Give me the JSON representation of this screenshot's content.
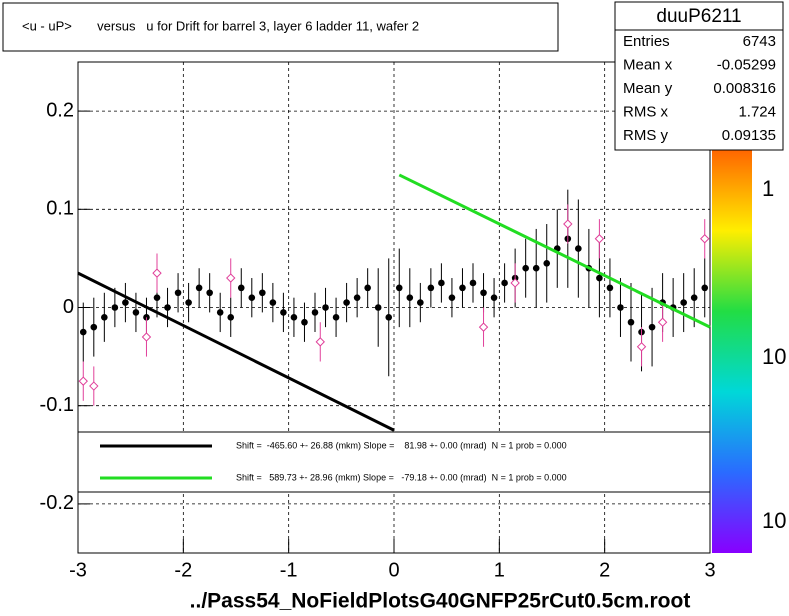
{
  "chart_data": {
    "type": "scatter",
    "title": "<u - uP>       versus   u for Drift for barrel 3, layer 6 ladder 11, wafer 2",
    "xlabel": "../Pass54_NoFieldPlotsG40GNFP25rCut0.5cm.root",
    "xlim": [
      -3,
      3
    ],
    "ylim": [
      -0.25,
      0.25
    ],
    "xticks": [
      -3,
      -2,
      -1,
      0,
      1,
      2,
      3
    ],
    "yticks": [
      0.2,
      0.1,
      0,
      -0.1,
      -0.2
    ],
    "grid": true,
    "series": [
      {
        "color": "#000000",
        "marker": "filled",
        "x": [
          -2.95,
          -2.85,
          -2.75,
          -2.65,
          -2.55,
          -2.45,
          -2.35,
          -2.25,
          -2.15,
          -2.05,
          -1.95,
          -1.85,
          -1.75,
          -1.65,
          -1.55,
          -1.45,
          -1.35,
          -1.25,
          -1.15,
          -1.05,
          -0.95,
          -0.85,
          -0.75,
          -0.65,
          -0.55,
          -0.45,
          -0.35,
          -0.25,
          -0.15,
          -0.05,
          0.05,
          0.15,
          0.25,
          0.35,
          0.45,
          0.55,
          0.65,
          0.75,
          0.85,
          0.95,
          1.05,
          1.15,
          1.25,
          1.35,
          1.45,
          1.55,
          1.65,
          1.75,
          1.85,
          1.95,
          2.05,
          2.15,
          2.25,
          2.35,
          2.45,
          2.55,
          2.65,
          2.75,
          2.85,
          2.95
        ],
        "values": [
          -0.025,
          -0.02,
          -0.01,
          0.0,
          0.005,
          -0.005,
          -0.01,
          0.01,
          0.0,
          0.015,
          0.005,
          0.02,
          0.015,
          -0.005,
          -0.01,
          0.02,
          0.01,
          0.015,
          0.005,
          -0.005,
          -0.01,
          -0.015,
          -0.005,
          0.0,
          -0.01,
          0.005,
          0.01,
          0.02,
          0.0,
          -0.01,
          0.02,
          0.01,
          0.005,
          0.02,
          0.025,
          0.01,
          0.02,
          0.025,
          0.015,
          0.01,
          0.025,
          0.03,
          0.04,
          0.04,
          0.045,
          0.06,
          0.07,
          0.06,
          0.04,
          0.03,
          0.02,
          0.0,
          -0.015,
          -0.025,
          -0.02,
          0.005,
          0.0,
          0.005,
          0.01,
          0.02
        ],
        "errors": [
          0.03,
          0.03,
          0.025,
          0.02,
          0.02,
          0.02,
          0.02,
          0.02,
          0.02,
          0.02,
          0.02,
          0.02,
          0.02,
          0.02,
          0.02,
          0.02,
          0.02,
          0.02,
          0.02,
          0.02,
          0.02,
          0.02,
          0.02,
          0.02,
          0.02,
          0.02,
          0.02,
          0.02,
          0.04,
          0.06,
          0.04,
          0.03,
          0.02,
          0.02,
          0.02,
          0.02,
          0.02,
          0.02,
          0.02,
          0.02,
          0.02,
          0.03,
          0.03,
          0.04,
          0.04,
          0.04,
          0.05,
          0.05,
          0.04,
          0.04,
          0.03,
          0.03,
          0.04,
          0.04,
          0.04,
          0.03,
          0.03,
          0.03,
          0.03,
          0.03
        ]
      },
      {
        "color": "#e0409a",
        "marker": "open",
        "x": [
          -2.95,
          -2.85,
          -2.35,
          -2.25,
          -1.55,
          -0.7,
          0.85,
          1.15,
          1.65,
          1.95,
          2.35,
          2.55,
          2.95
        ],
        "values": [
          -0.075,
          -0.08,
          -0.03,
          0.035,
          0.03,
          -0.035,
          -0.02,
          0.025,
          0.085,
          0.07,
          -0.04,
          -0.015,
          0.07
        ],
        "errors": [
          0.02,
          0.02,
          0.02,
          0.02,
          0.02,
          0.02,
          0.02,
          0.02,
          0.02,
          0.02,
          0.02,
          0.02,
          0.02
        ]
      }
    ],
    "fits": [
      {
        "color": "#000000",
        "x": [
          -3,
          0
        ],
        "values": [
          0.035,
          -0.125
        ],
        "label": "Shift =  -465.60 +- 26.88 (mkm) Slope =    81.98 +- 0.00 (mrad)  N = 1 prob = 0.000"
      },
      {
        "color": "#22dd22",
        "x": [
          0.05,
          3
        ],
        "values": [
          0.135,
          -0.02
        ],
        "label": "Shift =   589.73 +- 28.96 (mkm) Slope =   -79.18 +- 0.00 (mrad)  N = 1 prob = 0.000"
      }
    ],
    "stats": {
      "title": "duuP6211",
      "rows": [
        [
          "Entries",
          6743
        ],
        [
          "Mean x",
          -0.05299
        ],
        [
          "Mean y",
          0.008316
        ],
        [
          "RMS x",
          1.724
        ],
        [
          "RMS y",
          0.09135
        ]
      ]
    },
    "palette_labels": [
      "1",
      "10",
      "10"
    ]
  }
}
